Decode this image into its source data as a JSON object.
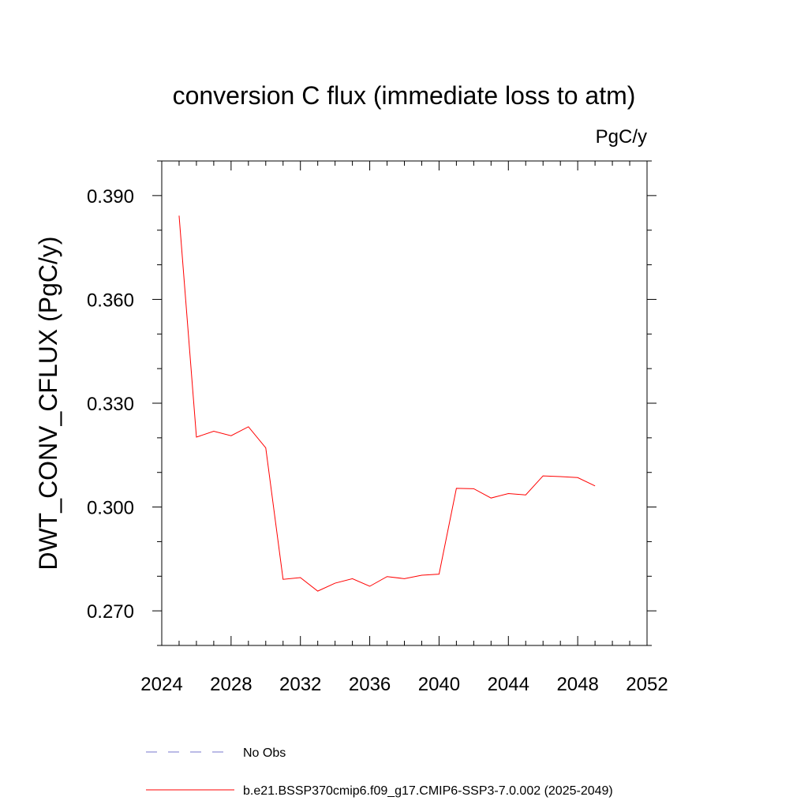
{
  "chart_data": {
    "type": "line",
    "title": "conversion C flux (immediate loss to atm)",
    "units_label": "PgC/y",
    "ylabel": "DWT_CONV_CFLUX  (PgC/y)",
    "xlabel": "",
    "xlim": [
      2024,
      2052
    ],
    "ylim": [
      0.26,
      0.4
    ],
    "x_ticks": [
      2024,
      2028,
      2032,
      2036,
      2040,
      2044,
      2048,
      2052
    ],
    "x_tick_labels": [
      "2024",
      "2028",
      "2032",
      "2036",
      "2040",
      "2044",
      "2048",
      "2052"
    ],
    "y_ticks": [
      0.27,
      0.3,
      0.33,
      0.36,
      0.39
    ],
    "y_tick_labels": [
      "0.270",
      "0.300",
      "0.330",
      "0.360",
      "0.390"
    ],
    "grid": false,
    "legend_placement": "bottom",
    "series": [
      {
        "name": "b.e21.BSSP370cmip6.f09_g17.CMIP6-SSP3-7.0.002 (2025-2049)",
        "color": "#ff0000",
        "style": "solid",
        "x": [
          2025,
          2026,
          2027,
          2028,
          2029,
          2030,
          2031,
          2032,
          2033,
          2034,
          2035,
          2036,
          2037,
          2038,
          2039,
          2040,
          2041,
          2042,
          2043,
          2044,
          2045,
          2046,
          2047,
          2048,
          2049
        ],
        "values": [
          0.3842,
          0.3202,
          0.3219,
          0.3206,
          0.3232,
          0.3171,
          0.2791,
          0.2796,
          0.2757,
          0.278,
          0.2793,
          0.2771,
          0.2799,
          0.2793,
          0.2803,
          0.2806,
          0.3054,
          0.3053,
          0.3026,
          0.3039,
          0.3035,
          0.309,
          0.3088,
          0.3085,
          0.3061
        ]
      }
    ],
    "legend": [
      {
        "label": "No Obs",
        "color": "#7777cc",
        "style": "dashed"
      },
      {
        "label": "b.e21.BSSP370cmip6.f09_g17.CMIP6-SSP3-7.0.002 (2025-2049)",
        "color": "#ff0000",
        "style": "solid"
      }
    ]
  }
}
